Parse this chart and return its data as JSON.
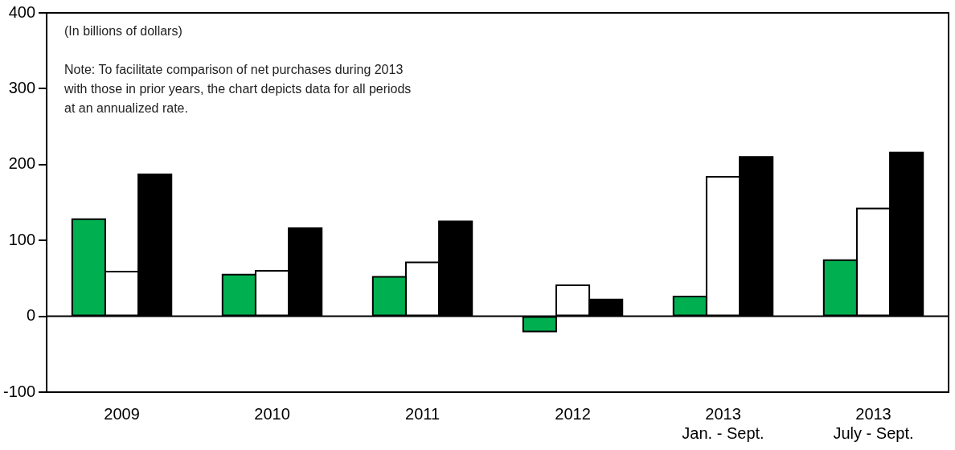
{
  "chart_data": {
    "type": "bar",
    "categories": [
      "2009",
      "2010",
      "2011",
      "2012",
      "2013\nJan. - Sept.",
      "2013\nJuly - Sept."
    ],
    "series": [
      {
        "color": "#00b050",
        "values": [
          128,
          55,
          52,
          -20,
          26,
          74
        ]
      },
      {
        "color": "#ffffff",
        "values": [
          59,
          60,
          71,
          41,
          184,
          142
        ]
      },
      {
        "color": "#000000",
        "values": [
          187,
          116,
          125,
          22,
          210,
          216
        ]
      }
    ],
    "ylim": [
      -100,
      400
    ],
    "yticks": [
      -100,
      0,
      100,
      200,
      300,
      400
    ],
    "annotations": [
      "(In billions of dollars)",
      "Note: To facilitate comparison of net purchases during 2013\nwith those in prior years, the chart depicts data for all periods\nat an annualized rate."
    ]
  }
}
